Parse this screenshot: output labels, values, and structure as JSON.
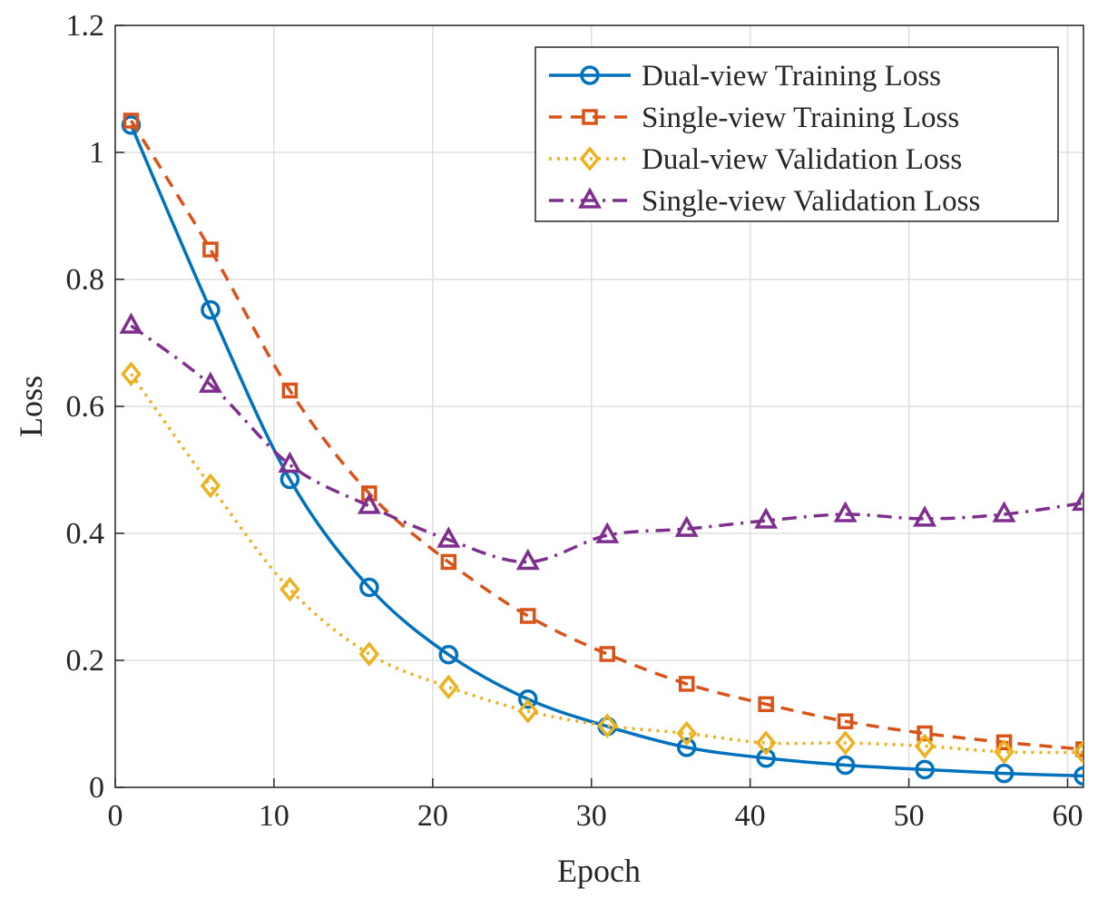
{
  "chart_data": {
    "type": "line",
    "x_label": "Epoch",
    "y_label": "Loss",
    "x": [
      1,
      6,
      11,
      16,
      21,
      26,
      31,
      36,
      41,
      46,
      51,
      56,
      61
    ],
    "series": [
      {
        "name": "Dual-view Training Loss",
        "color": "#0072BD",
        "line_style": "solid",
        "marker": "circle",
        "values": [
          1.043,
          0.752,
          0.485,
          0.315,
          0.209,
          0.139,
          0.096,
          0.063,
          0.046,
          0.035,
          0.028,
          0.022,
          0.018
        ]
      },
      {
        "name": "Single-view Training Loss",
        "color": "#D95319",
        "line_style": "dashed",
        "marker": "square",
        "values": [
          1.05,
          0.847,
          0.625,
          0.463,
          0.355,
          0.27,
          0.21,
          0.163,
          0.131,
          0.104,
          0.085,
          0.071,
          0.06
        ]
      },
      {
        "name": "Dual-view Validation Loss",
        "color": "#EDB120",
        "line_style": "dotted",
        "marker": "diamond",
        "values": [
          0.651,
          0.475,
          0.312,
          0.21,
          0.158,
          0.12,
          0.097,
          0.085,
          0.07,
          0.07,
          0.065,
          0.056,
          0.055
        ]
      },
      {
        "name": "Single-view Validation Loss",
        "color": "#7E2F8E",
        "line_style": "dashdot",
        "marker": "triangle",
        "values": [
          0.727,
          0.634,
          0.508,
          0.443,
          0.39,
          0.355,
          0.397,
          0.407,
          0.42,
          0.43,
          0.423,
          0.43,
          0.448
        ]
      }
    ],
    "xlim": [
      0,
      61
    ],
    "xticks": [
      0,
      10,
      20,
      30,
      40,
      50,
      60
    ],
    "ylim": [
      0,
      1.2
    ],
    "yticks": [
      0,
      0.2,
      0.4,
      0.6,
      0.8,
      1,
      1.2
    ],
    "grid": true,
    "legend": "top-right"
  }
}
